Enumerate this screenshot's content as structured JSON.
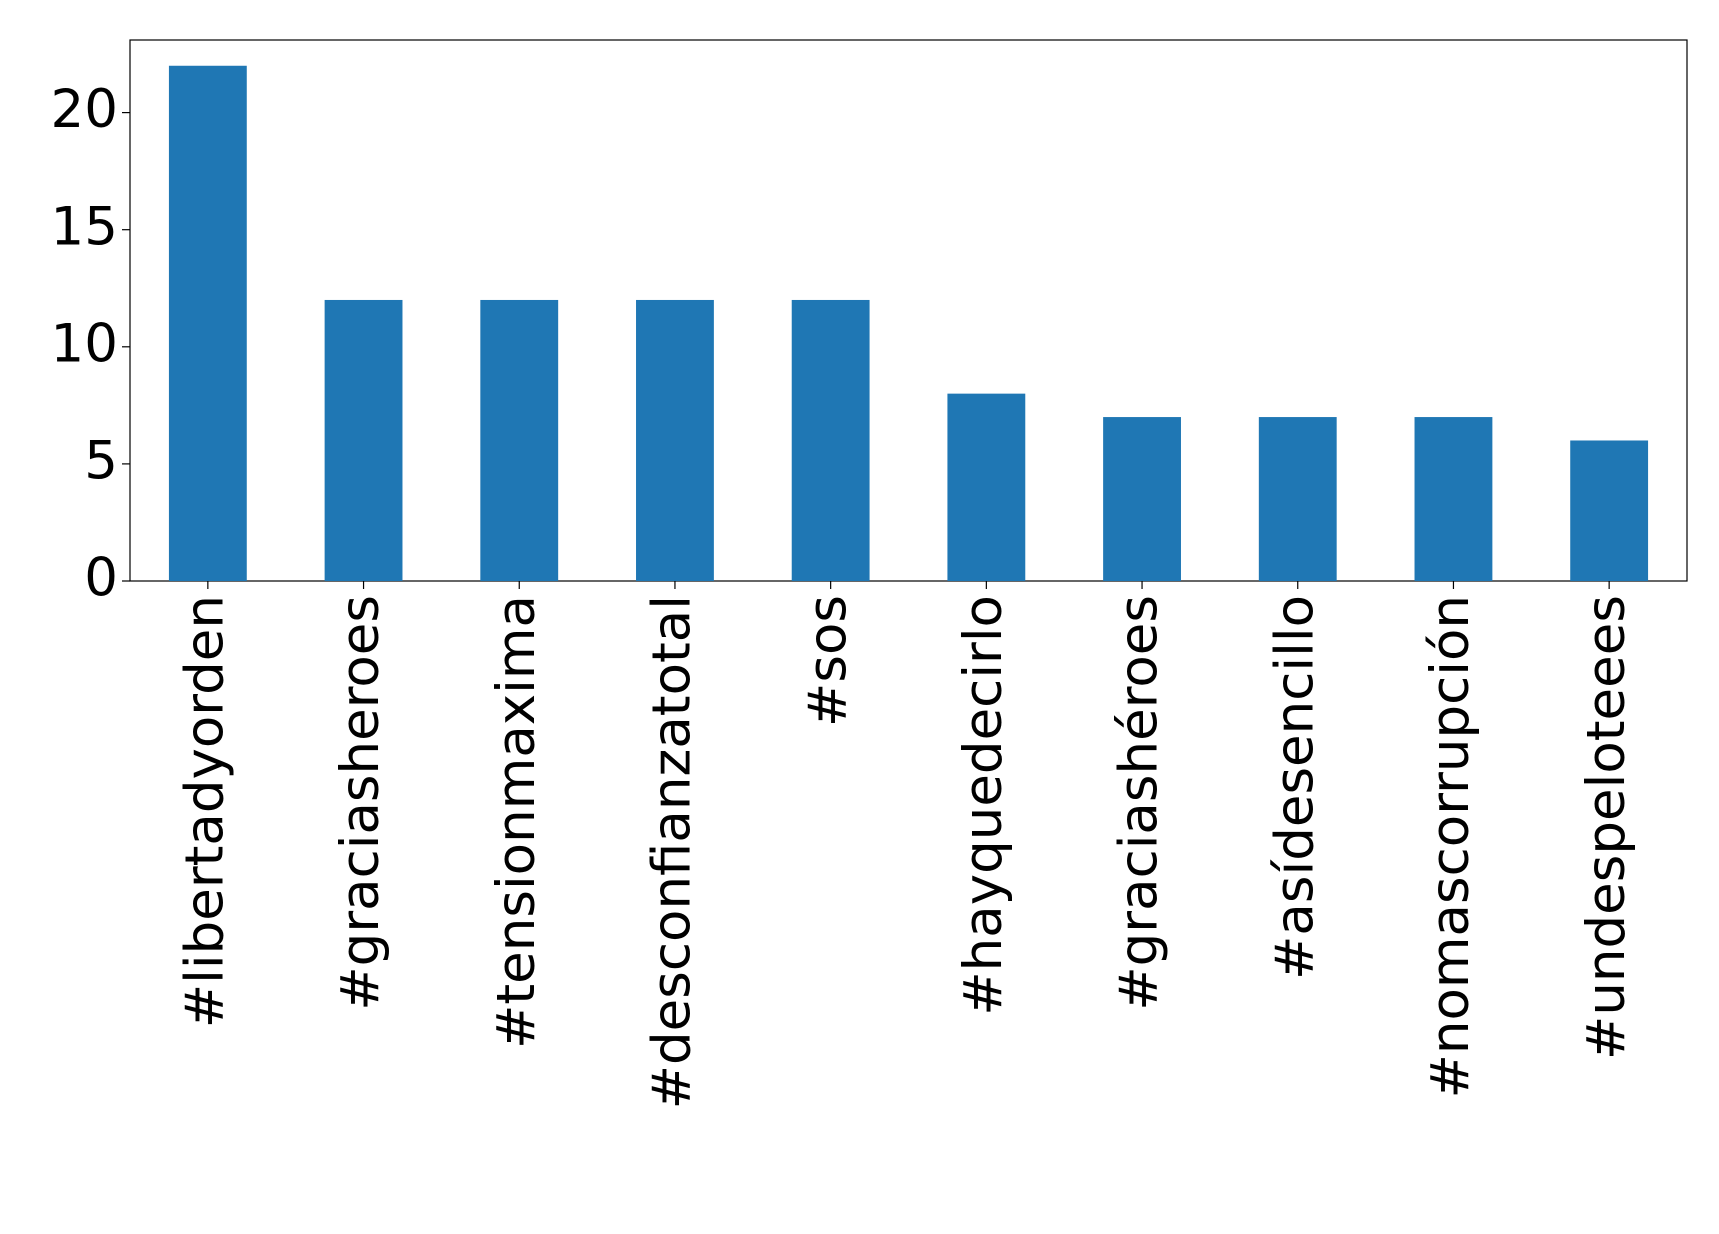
{
  "chart_data": {
    "type": "bar",
    "categories": [
      "#libertadyorden",
      "#graciasheroes",
      "#tensionmaxima",
      "#desconfianzatotal",
      "#sos",
      "#hayquedecirlo",
      "#graciashéroes",
      "#asídesencillo",
      "#nomascorrupción",
      "#undespeloteees"
    ],
    "values": [
      22,
      12,
      12,
      12,
      12,
      8,
      7,
      7,
      7,
      6
    ],
    "color": "#1f77b4",
    "ylim": [
      0,
      23.1
    ],
    "yticks": [
      0,
      5,
      10,
      15,
      20
    ],
    "grid": false
  }
}
